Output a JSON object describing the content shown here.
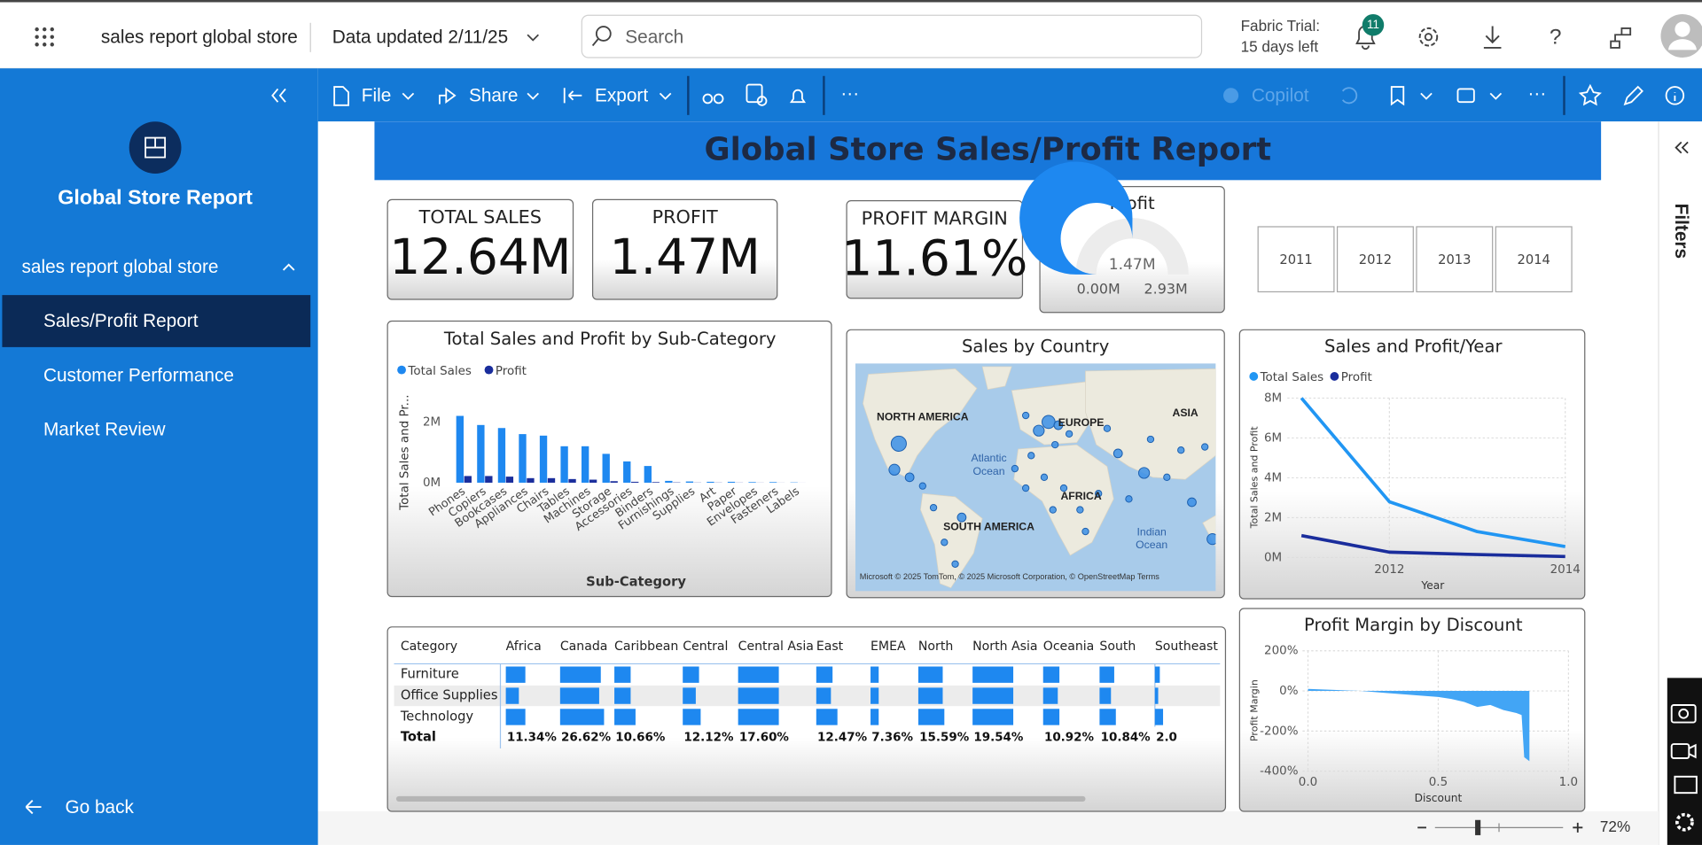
{
  "topbar": {
    "app_title": "sales report global store",
    "data_updated": "Data updated 2/11/25",
    "search_placeholder": "Search",
    "trial": [
      "Fabric Trial:",
      "15 days left"
    ],
    "notifications": "11"
  },
  "nav": {
    "report_title": "Global Store Report",
    "section": "sales report global store",
    "pages": [
      "Sales/Profit Report",
      "Customer Performance",
      "Market Review"
    ],
    "go_back": "Go back"
  },
  "toolbar": {
    "items": [
      "File",
      "Share",
      "Export"
    ],
    "copilot": "Copilot"
  },
  "filters_pane": "Filters",
  "footer": {
    "zoom": "72%"
  },
  "report": {
    "title": "Global Store  Sales/Profit Report",
    "cards": [
      {
        "label": "TOTAL SALES",
        "value": "12.64M"
      },
      {
        "label": "PROFIT",
        "value": "1.47M"
      },
      {
        "label": "PROFIT MARGIN",
        "value": "11.61%"
      }
    ],
    "gauge": {
      "type": "gauge",
      "title": "Profit",
      "value": 1470000,
      "min": 0,
      "max": 2930000,
      "value_label": "1.47M",
      "min_label": "0.00M",
      "max_label": "2.93M",
      "color": "#1e88f0"
    },
    "year_slicer": [
      "2011",
      "2012",
      "2013",
      "2014"
    ],
    "subcat_chart": {
      "type": "bar",
      "title": "Total Sales and Profit by Sub-Category",
      "y_label": "Total Sales and Pr...",
      "x_label": "Sub-Category",
      "categories": [
        "Phones",
        "Copiers",
        "Bookcases",
        "Appliances",
        "Chairs",
        "Tables",
        "Machines",
        "Storage",
        "Accessories",
        "Binders",
        "Furnishings",
        "Supplies",
        "Art",
        "Paper",
        "Envelopes",
        "Fasteners",
        "Labels"
      ],
      "series": [
        {
          "name": "Total Sales",
          "color": "#1e88f0",
          "values": [
            2200000,
            1900000,
            1800000,
            1600000,
            1550000,
            1200000,
            1200000,
            950000,
            700000,
            550000,
            60000,
            40000,
            30000,
            30000,
            20000,
            20000,
            10000
          ]
        },
        {
          "name": "Profit",
          "color": "#1a2d9c",
          "values": [
            220000,
            220000,
            200000,
            150000,
            150000,
            120000,
            100000,
            50000,
            30000,
            20000,
            10000,
            5000,
            5000,
            4000,
            3000,
            2000,
            1000
          ]
        }
      ],
      "ylim": [
        0,
        3000000
      ],
      "yticks": [
        {
          "value": 0,
          "label": "0M"
        },
        {
          "value": 2000000,
          "label": "2M"
        }
      ]
    },
    "map": {
      "title": "Sales by Country",
      "labels": [
        "NORTH AMERICA",
        "EUROPE",
        "ASIA",
        "Atlantic",
        "Ocean",
        "AFRICA",
        "SOUTH AMERICA",
        "Indian",
        "Ocean"
      ],
      "attribution": "Microsoft  © 2025 TomTom, © 2025 Microsoft Corporation, © OpenStreetMap  Terms"
    },
    "year_chart": {
      "type": "line",
      "title": "Sales and Profit/Year",
      "y_label": "Total Sales and Profit",
      "x_label": "Year",
      "x": [
        2011,
        2012,
        2013,
        2014
      ],
      "series": [
        {
          "name": "Total Sales",
          "color": "#2196f3",
          "values": [
            8000000,
            2800000,
            1300000,
            550000
          ]
        },
        {
          "name": "Profit",
          "color": "#1a2d9c",
          "values": [
            1100000,
            270000,
            150000,
            50000
          ]
        }
      ],
      "xlim": [
        2011,
        2014
      ],
      "xticks": [
        2012,
        2014
      ],
      "ylim": [
        0,
        8000000
      ],
      "yticks": [
        {
          "value": 0,
          "label": "0M"
        },
        {
          "value": 2000000,
          "label": "2M"
        },
        {
          "value": 4000000,
          "label": "4M"
        },
        {
          "value": 6000000,
          "label": "6M"
        },
        {
          "value": 8000000,
          "label": "8M"
        }
      ],
      "grid": true
    },
    "discount_chart": {
      "type": "area",
      "title": "Profit Margin by Discount",
      "y_label": "Profit Margin",
      "x_label": "Discount",
      "color": "#42a5f5",
      "x": [
        0,
        0.1,
        0.2,
        0.3,
        0.4,
        0.45,
        0.5,
        0.55,
        0.6,
        0.65,
        0.7,
        0.75,
        0.8,
        0.82,
        0.83,
        0.85
      ],
      "values": [
        10,
        5,
        0,
        -10,
        -20,
        -25,
        -30,
        -40,
        -55,
        -80,
        -70,
        -95,
        -110,
        -120,
        -330,
        -350
      ],
      "xlim": [
        0,
        1
      ],
      "xticks": [
        {
          "value": 0,
          "label": "0.0"
        },
        {
          "value": 0.5,
          "label": "0.5"
        },
        {
          "value": 1,
          "label": "1.0"
        }
      ],
      "ylim": [
        -400,
        200
      ],
      "yticks": [
        {
          "value": 200,
          "label": "200%"
        },
        {
          "value": 0,
          "label": "0%"
        },
        {
          "value": -200,
          "label": "-200%"
        },
        {
          "value": -400,
          "label": "-400%"
        }
      ],
      "grid": true
    },
    "matrix": {
      "header": [
        "Category",
        "Africa",
        "Canada",
        "Caribbean",
        "Central",
        "Central Asia",
        "East",
        "EMEA",
        "North",
        "North Asia",
        "Oceania",
        "South",
        "Southeast A"
      ],
      "rows": [
        {
          "label": "Furniture",
          "values": [
            12,
            25,
            10,
            10,
            25,
            10,
            5,
            15,
            25,
            10,
            9,
            3
          ]
        },
        {
          "label": "Office Supplies",
          "values": [
            8,
            24,
            10,
            8,
            25,
            9,
            5,
            15,
            25,
            9,
            7,
            2
          ]
        },
        {
          "label": "Technology",
          "values": [
            12,
            27,
            13,
            11,
            25,
            13,
            5,
            16,
            25,
            10,
            10,
            5
          ]
        }
      ],
      "bar_color": "#1e88f0",
      "total": {
        "label": "Total",
        "values": [
          "11.34%",
          "26.62%",
          "10.66%",
          "12.12%",
          "17.60%",
          "12.47%",
          "7.36%",
          "15.59%",
          "19.54%",
          "10.92%",
          "10.84%",
          "2.0"
        ]
      }
    }
  }
}
